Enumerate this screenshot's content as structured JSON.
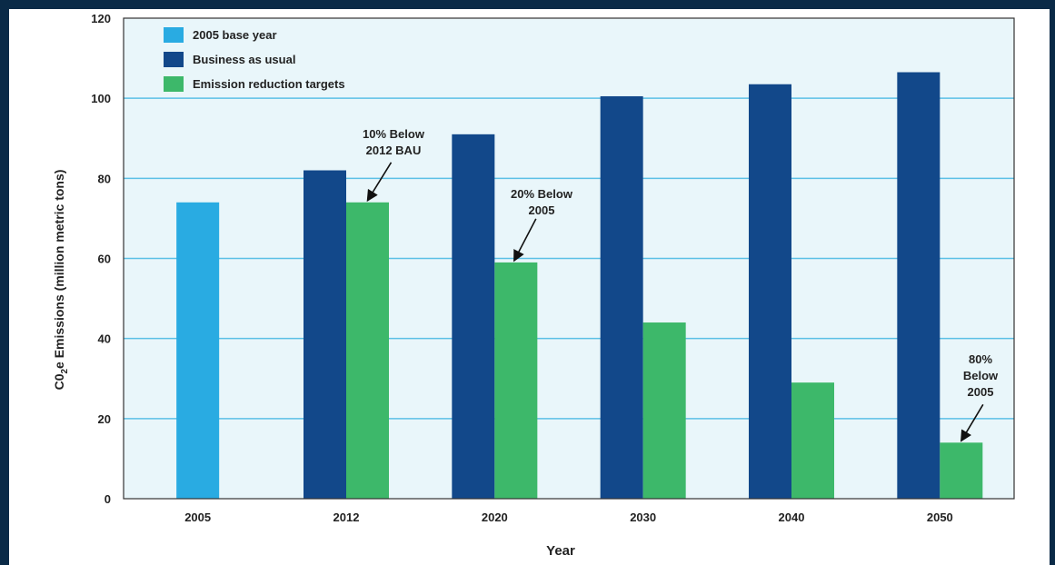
{
  "chart_data": {
    "type": "bar",
    "title": "",
    "xlabel": "Year",
    "ylabel_main": "C0",
    "ylabel_sub": "2",
    "ylabel_rest": "e Emissions (million metric tons)",
    "ylim": [
      0,
      120
    ],
    "yticks": [
      "0",
      "20",
      "40",
      "60",
      "80",
      "100",
      "120"
    ],
    "categories": [
      "2005",
      "2012",
      "2020",
      "2030",
      "2040",
      "2050"
    ],
    "series": [
      {
        "name": "2005 base year",
        "color": "#29abe2",
        "values": [
          74,
          null,
          null,
          null,
          null,
          null
        ]
      },
      {
        "name": "Business as usual",
        "color": "#12488a",
        "values": [
          null,
          82,
          91,
          100.5,
          103.5,
          106.5
        ]
      },
      {
        "name": "Emission reduction targets",
        "color": "#3db86a",
        "values": [
          null,
          74,
          59,
          44,
          29,
          14
        ]
      }
    ],
    "legend_position": "top-left",
    "grid": true,
    "annotations": [
      {
        "lines": [
          "10% Below",
          "2012 BAU"
        ],
        "category": "2012",
        "target_value": 74
      },
      {
        "lines": [
          "20% Below",
          "2005"
        ],
        "category": "2020",
        "target_value": 59
      },
      {
        "lines": [
          "80%",
          "Below",
          "2005"
        ],
        "category": "2050",
        "target_value": 14
      }
    ]
  }
}
